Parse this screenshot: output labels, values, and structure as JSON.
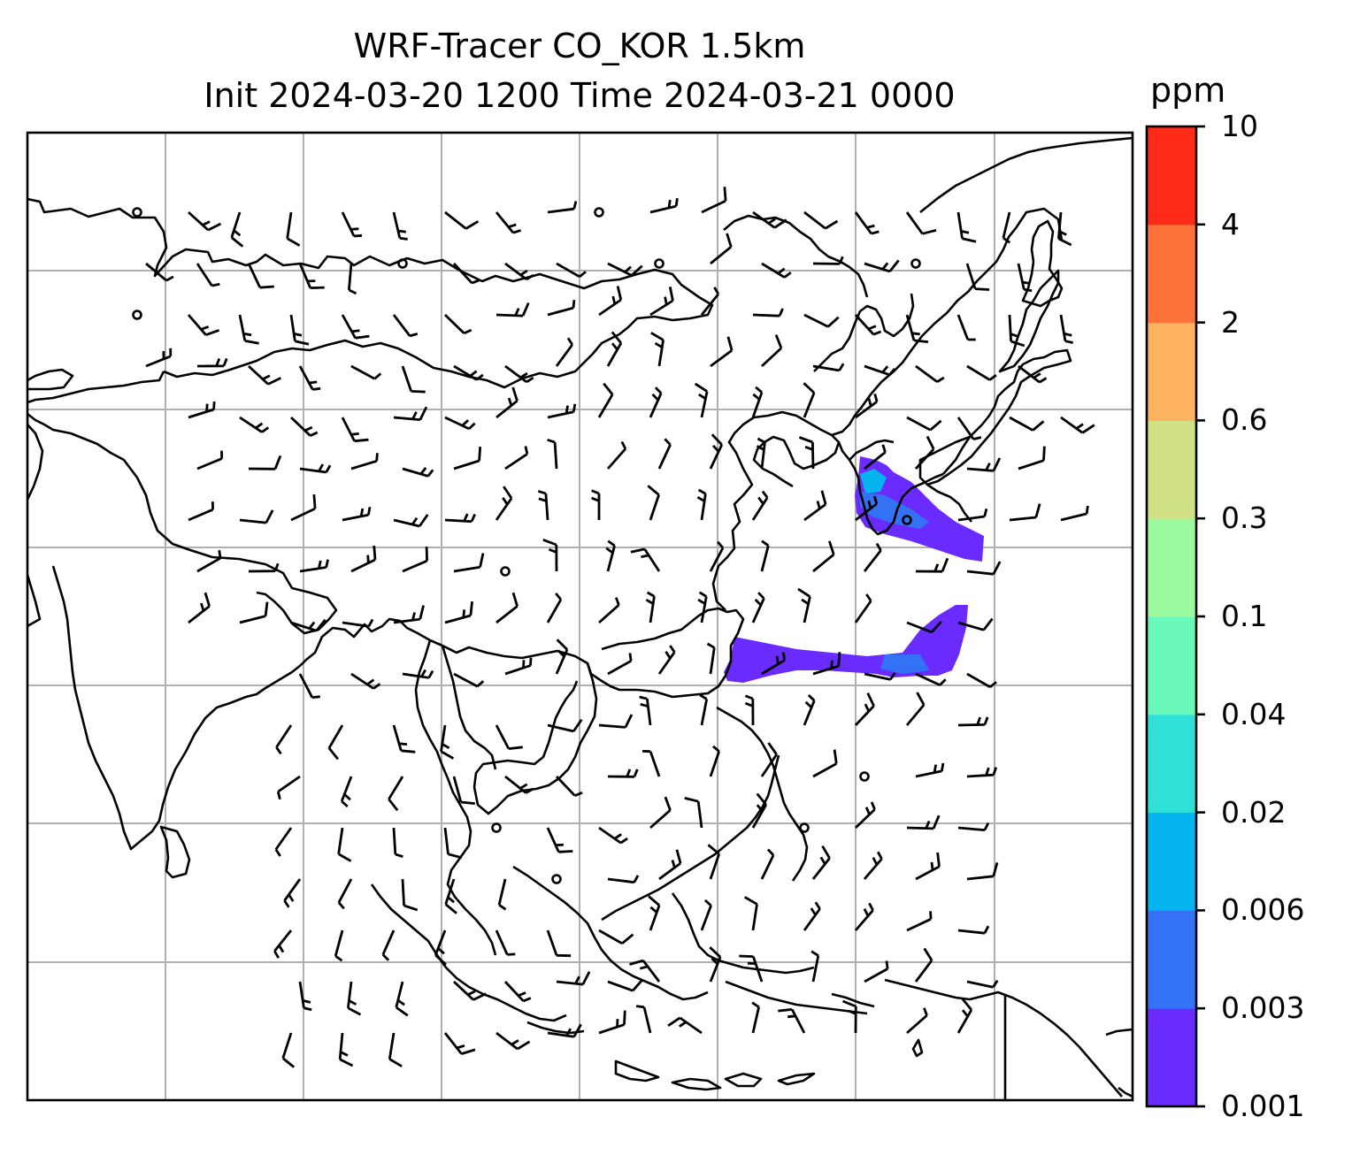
{
  "title": {
    "line1": "WRF-Tracer CO_KOR 1.5km",
    "line2": "Init 2024-03-20 1200 Time 2024-03-21 0000"
  },
  "colorbar": {
    "unit": "ppm",
    "ticks": [
      "0.001",
      "0.003",
      "0.006",
      "0.02",
      "0.04",
      "0.1",
      "0.3",
      "0.6",
      "2",
      "4",
      "10"
    ],
    "colors": [
      "#6a2bff",
      "#3372f4",
      "#05b3ef",
      "#2fe0d6",
      "#6bf8bb",
      "#9bfa9e",
      "#d0e185",
      "#fdb262",
      "#ff7239",
      "#ff2a17"
    ]
  },
  "map": {
    "features": [
      "coastlines",
      "gridlines",
      "wind-barbs",
      "co-tracer-plume"
    ],
    "gridline_color": "#b0b0b0",
    "plume_colors": [
      "#6a2bff",
      "#3372f4",
      "#05b3ef"
    ]
  }
}
